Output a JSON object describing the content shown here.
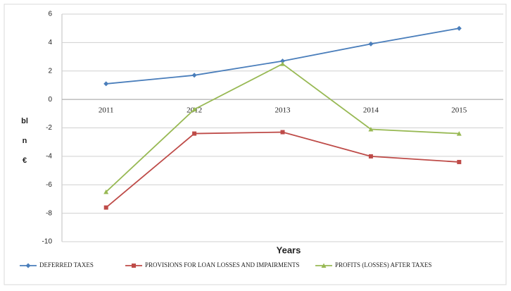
{
  "chart_data": {
    "type": "line",
    "categories": [
      "2011",
      "2012",
      "2013",
      "2014",
      "2015"
    ],
    "series": [
      {
        "name": "DEFERRED TAXES",
        "color": "#4a7ebb",
        "values": [
          1.1,
          1.7,
          2.7,
          3.9,
          5.0
        ]
      },
      {
        "name": "PROVISIONS FOR LOAN LOSSES AND IMPAIRMENTS",
        "color": "#be4b48",
        "values": [
          -7.6,
          -2.4,
          -2.3,
          -4.0,
          -4.4
        ]
      },
      {
        "name": "PROFITS (LOSSES) AFTER TAXES",
        "color": "#98b954",
        "values": [
          -6.5,
          -0.7,
          2.5,
          -2.1,
          -2.4
        ]
      }
    ],
    "x_label": "Years",
    "y_label": "bln €",
    "ylim": [
      -10,
      6
    ],
    "yticks": [
      -10,
      -8,
      -6,
      -4,
      -2,
      0,
      2,
      4,
      6
    ],
    "grid": true
  }
}
